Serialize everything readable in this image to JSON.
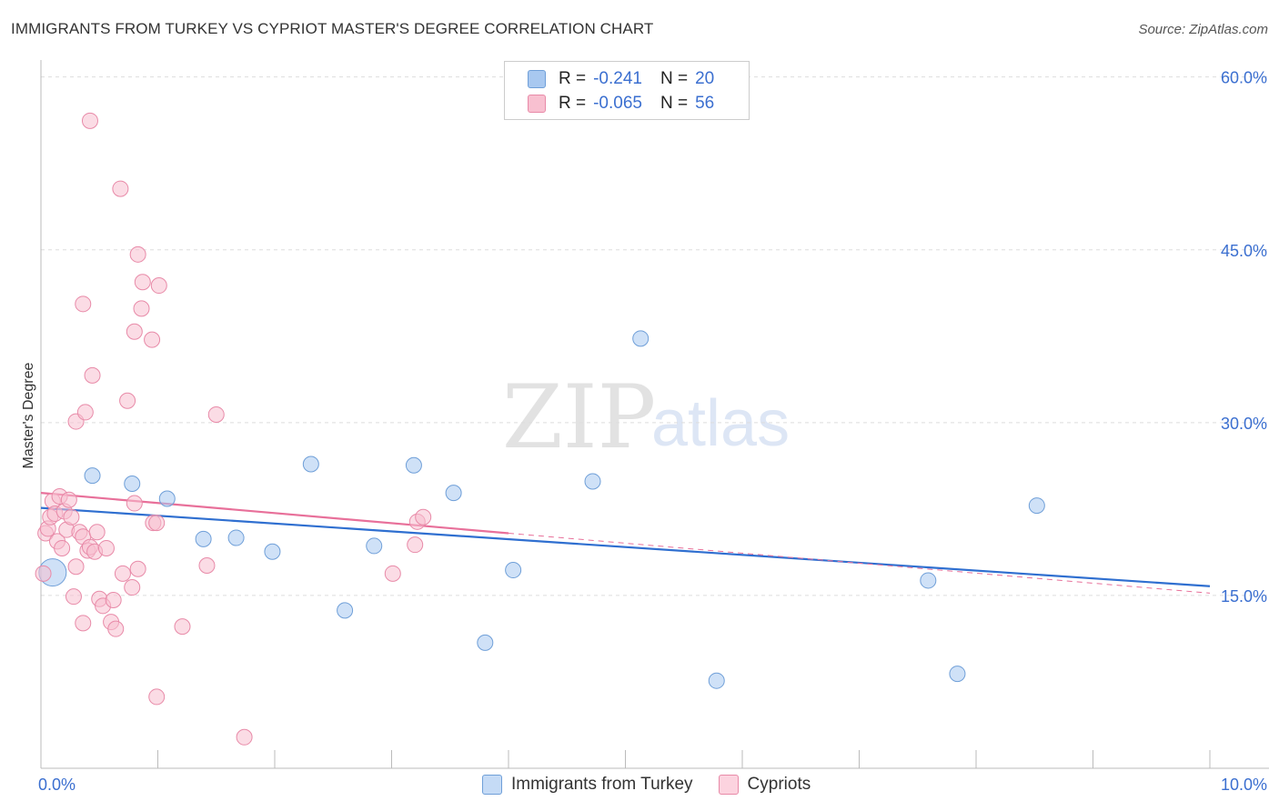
{
  "header": {
    "title": "IMMIGRANTS FROM TURKEY VS CYPRIOT MASTER'S DEGREE CORRELATION CHART",
    "source": "Source: ZipAtlas.com"
  },
  "watermark": {
    "zip": "ZIP",
    "atlas": "atlas"
  },
  "legend": {
    "rows": [
      {
        "r_label": "R =",
        "r_value": "-0.241",
        "n_label": "N =",
        "n_value": "20",
        "color": "#a8c8f0",
        "border": "#6f9fd8"
      },
      {
        "r_label": "R =",
        "r_value": "-0.065",
        "n_label": "N =",
        "n_value": "56",
        "color": "#f8c0d0",
        "border": "#e88aa8"
      }
    ]
  },
  "bottom_legend": {
    "items": [
      {
        "label": "Immigrants from Turkey",
        "color": "#c5dbf6",
        "border": "#6f9fd8"
      },
      {
        "label": "Cypriots",
        "color": "#fcd3df",
        "border": "#e88aa8"
      }
    ]
  },
  "chart_data": {
    "type": "scatter",
    "title": "IMMIGRANTS FROM TURKEY VS CYPRIOT MASTER'S DEGREE CORRELATION CHART",
    "xlabel": "",
    "ylabel": "Master's Degree",
    "xlim": [
      0,
      10
    ],
    "ylim": [
      0,
      61
    ],
    "x_tick_labels": [
      {
        "value": 0,
        "label": "0.0%"
      },
      {
        "value": 10,
        "label": "10.0%"
      }
    ],
    "y_tick_labels": [
      {
        "value": 15,
        "label": "15.0%"
      },
      {
        "value": 30,
        "label": "30.0%"
      },
      {
        "value": 45,
        "label": "45.0%"
      },
      {
        "value": 60,
        "label": "60.0%"
      }
    ],
    "grid": true,
    "series": [
      {
        "name": "Immigrants from Turkey",
        "color": "#a8c8f0",
        "stroke": "#6f9fd8",
        "line_color": "#2f6fd0",
        "trend": {
          "x0": 0.0,
          "y0": 22.6,
          "x1": 10.0,
          "y1": 15.8
        },
        "points": [
          {
            "x": 0.1,
            "y": 17.0,
            "size": "large"
          },
          {
            "x": 0.44,
            "y": 25.4
          },
          {
            "x": 0.78,
            "y": 24.7
          },
          {
            "x": 1.08,
            "y": 23.4
          },
          {
            "x": 1.39,
            "y": 19.9
          },
          {
            "x": 1.67,
            "y": 20.0
          },
          {
            "x": 1.98,
            "y": 18.8
          },
          {
            "x": 2.31,
            "y": 26.4
          },
          {
            "x": 2.6,
            "y": 13.7
          },
          {
            "x": 2.85,
            "y": 19.3
          },
          {
            "x": 3.19,
            "y": 26.3
          },
          {
            "x": 3.53,
            "y": 23.9
          },
          {
            "x": 3.8,
            "y": 10.9
          },
          {
            "x": 4.04,
            "y": 17.2
          },
          {
            "x": 4.72,
            "y": 24.9
          },
          {
            "x": 5.13,
            "y": 37.3
          },
          {
            "x": 5.78,
            "y": 7.6
          },
          {
            "x": 7.59,
            "y": 16.3
          },
          {
            "x": 7.84,
            "y": 8.2
          },
          {
            "x": 8.52,
            "y": 22.8
          }
        ]
      },
      {
        "name": "Cypriots",
        "color": "#f8c0d0",
        "stroke": "#e88aa8",
        "line_color": "#e8709a",
        "trend": {
          "x0": 0.0,
          "y0": 23.9,
          "x1": 4.0,
          "y1": 20.4
        },
        "trend_extension": {
          "x0": 4.0,
          "y0": 20.4,
          "x1": 10.0,
          "y1": 15.2
        },
        "points": [
          {
            "x": 0.02,
            "y": 16.9
          },
          {
            "x": 0.04,
            "y": 20.4
          },
          {
            "x": 0.06,
            "y": 20.8
          },
          {
            "x": 0.08,
            "y": 21.8
          },
          {
            "x": 0.1,
            "y": 23.2
          },
          {
            "x": 0.12,
            "y": 22.1
          },
          {
            "x": 0.14,
            "y": 19.7
          },
          {
            "x": 0.16,
            "y": 23.6
          },
          {
            "x": 0.18,
            "y": 19.1
          },
          {
            "x": 0.2,
            "y": 22.3
          },
          {
            "x": 0.22,
            "y": 20.7
          },
          {
            "x": 0.24,
            "y": 23.3
          },
          {
            "x": 0.26,
            "y": 21.8
          },
          {
            "x": 0.28,
            "y": 14.9
          },
          {
            "x": 0.3,
            "y": 17.5
          },
          {
            "x": 0.3,
            "y": 30.1
          },
          {
            "x": 0.33,
            "y": 20.5
          },
          {
            "x": 0.36,
            "y": 12.6
          },
          {
            "x": 0.36,
            "y": 20.1
          },
          {
            "x": 0.4,
            "y": 18.9
          },
          {
            "x": 0.42,
            "y": 19.2
          },
          {
            "x": 0.36,
            "y": 40.3
          },
          {
            "x": 0.38,
            "y": 30.9
          },
          {
            "x": 0.42,
            "y": 56.2
          },
          {
            "x": 0.44,
            "y": 34.1
          },
          {
            "x": 0.46,
            "y": 18.8
          },
          {
            "x": 0.48,
            "y": 20.5
          },
          {
            "x": 0.5,
            "y": 14.7
          },
          {
            "x": 0.53,
            "y": 14.1
          },
          {
            "x": 0.56,
            "y": 19.1
          },
          {
            "x": 0.6,
            "y": 12.7
          },
          {
            "x": 0.62,
            "y": 14.6
          },
          {
            "x": 0.64,
            "y": 12.1
          },
          {
            "x": 0.68,
            "y": 50.3
          },
          {
            "x": 0.7,
            "y": 16.9
          },
          {
            "x": 0.74,
            "y": 31.9
          },
          {
            "x": 0.78,
            "y": 15.7
          },
          {
            "x": 0.8,
            "y": 23.0
          },
          {
            "x": 0.8,
            "y": 37.9
          },
          {
            "x": 0.83,
            "y": 17.3
          },
          {
            "x": 0.83,
            "y": 44.6
          },
          {
            "x": 0.86,
            "y": 39.9
          },
          {
            "x": 0.87,
            "y": 42.2
          },
          {
            "x": 0.95,
            "y": 37.2
          },
          {
            "x": 0.96,
            "y": 21.3
          },
          {
            "x": 0.99,
            "y": 21.3
          },
          {
            "x": 0.99,
            "y": 6.2
          },
          {
            "x": 1.01,
            "y": 41.9
          },
          {
            "x": 1.21,
            "y": 12.3
          },
          {
            "x": 1.42,
            "y": 17.6
          },
          {
            "x": 1.5,
            "y": 30.7
          },
          {
            "x": 1.74,
            "y": 2.7
          },
          {
            "x": 3.01,
            "y": 16.9
          },
          {
            "x": 3.2,
            "y": 19.4
          },
          {
            "x": 3.22,
            "y": 21.4
          },
          {
            "x": 3.27,
            "y": 21.8
          }
        ]
      }
    ]
  }
}
